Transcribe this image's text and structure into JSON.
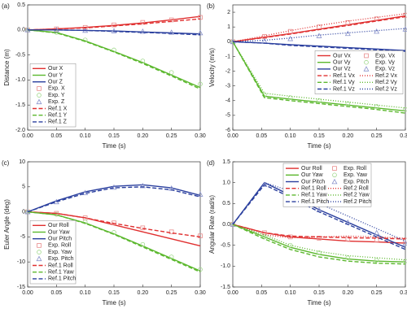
{
  "chart_data": [
    {
      "type": "line",
      "label": "(a)",
      "xlabel": "Time (s)",
      "ylabel": "Distance (m)",
      "xlim": [
        0,
        0.3
      ],
      "ylim": [
        -2,
        0.5
      ],
      "xticks": [
        {
          "value": 0,
          "label": "0.00"
        },
        0.05,
        {
          "value": 0.1,
          "label": "0.10"
        },
        0.15,
        {
          "value": 0.2,
          "label": "0.20"
        },
        0.25,
        {
          "value": 0.3,
          "label": "0.30"
        }
      ],
      "yticks": [
        0.5,
        {
          "value": 0,
          "label": "0.0"
        },
        -0.5,
        {
          "value": -1,
          "label": "-1.0"
        },
        -1.5,
        {
          "value": -2,
          "label": "-2.0"
        }
      ],
      "legend_position": "lower left",
      "legend_columns": 1,
      "x": [
        0,
        0.05,
        0.1,
        0.15,
        0.2,
        0.25,
        0.3
      ],
      "series": [
        {
          "name": "Our  X",
          "color": "#e03030",
          "dash": "solid",
          "values": [
            0,
            0.02,
            0.05,
            0.09,
            0.14,
            0.2,
            0.27
          ]
        },
        {
          "name": "Our  Y",
          "color": "#5cb82e",
          "dash": "solid",
          "values": [
            0,
            -0.05,
            -0.22,
            -0.43,
            -0.65,
            -0.9,
            -1.15
          ]
        },
        {
          "name": "Our  Z",
          "color": "#2a3f9e",
          "dash": "solid",
          "values": [
            0,
            0,
            -0.01,
            -0.02,
            -0.04,
            -0.06,
            -0.08
          ]
        },
        {
          "name": "Exp. X",
          "color": "#e88a8a",
          "marker": "square",
          "values": [
            0,
            0.02,
            0.05,
            0.1,
            0.15,
            0.2,
            0.25
          ]
        },
        {
          "name": "Exp. Y",
          "color": "#9fd88a",
          "marker": "circle",
          "values": [
            0,
            -0.05,
            -0.2,
            -0.4,
            -0.62,
            -0.85,
            -1.08
          ]
        },
        {
          "name": "Exp. Z",
          "color": "#8a93cc",
          "marker": "triangle",
          "values": [
            0,
            0,
            -0.01,
            -0.02,
            -0.03,
            -0.05,
            -0.06
          ]
        },
        {
          "name": "Ref.1 X",
          "color": "#e03030",
          "dash": "dash",
          "values": [
            0,
            0.02,
            0.04,
            0.08,
            0.12,
            0.17,
            0.22
          ]
        },
        {
          "name": "Ref.1 Y",
          "color": "#5cb82e",
          "dash": "dash",
          "values": [
            0,
            -0.06,
            -0.23,
            -0.44,
            -0.67,
            -0.92,
            -1.18
          ]
        },
        {
          "name": "Ref.1 Z",
          "color": "#2a3f9e",
          "dash": "dash",
          "values": [
            0,
            0,
            -0.01,
            -0.03,
            -0.05,
            -0.07,
            -0.1
          ]
        }
      ]
    },
    {
      "type": "line",
      "label": "(b)",
      "xlabel": "Time (s)",
      "ylabel": "Velocity (m/s)",
      "xlim": [
        0,
        0.3
      ],
      "ylim": [
        -6,
        2.5
      ],
      "xticks": [
        {
          "value": 0,
          "label": "0.00"
        },
        0.05,
        {
          "value": 0.1,
          "label": "0.10"
        },
        0.15,
        {
          "value": 0.2,
          "label": "0.20"
        },
        0.25,
        {
          "value": 0.3,
          "label": "0.30"
        }
      ],
      "yticks": [
        2,
        1,
        0,
        -1,
        -2,
        -3,
        -4,
        -5,
        -6
      ],
      "legend_position": "center right",
      "legend_columns": 2,
      "x": [
        0,
        0.055,
        0.1,
        0.15,
        0.2,
        0.25,
        0.3
      ],
      "series": [
        {
          "name": "Our Vx",
          "color": "#e03030",
          "dash": "solid",
          "values": [
            0,
            0.3,
            0.55,
            0.85,
            1.15,
            1.45,
            1.75
          ]
        },
        {
          "name": "Exp. Vx",
          "color": "#e88a8a",
          "marker": "square",
          "values": [
            0,
            0.35,
            0.7,
            1.0,
            1.3,
            1.55,
            1.8
          ]
        },
        {
          "name": "Our Vy",
          "color": "#5cb82e",
          "dash": "solid",
          "values": [
            0,
            -3.7,
            -3.9,
            -4.1,
            -4.3,
            -4.5,
            -4.7
          ]
        },
        {
          "name": "Exp. Vy",
          "color": "#9fd88a",
          "marker": "circle",
          "values": [
            0,
            -3.6,
            -3.8,
            -4.0,
            -4.2,
            -4.4,
            -4.6
          ]
        },
        {
          "name": "Our Vz",
          "color": "#2a3f9e",
          "dash": "solid",
          "values": [
            0,
            -0.1,
            -0.2,
            -0.3,
            -0.4,
            -0.5,
            -0.6
          ]
        },
        {
          "name": "Exp. Vz",
          "color": "#8a93cc",
          "marker": "triangle",
          "values": [
            0,
            0.05,
            0.2,
            0.4,
            0.55,
            0.7,
            0.85
          ]
        },
        {
          "name": "Ref.1 Vx",
          "color": "#e03030",
          "dash": "dash",
          "values": [
            0,
            0.28,
            0.52,
            0.82,
            1.1,
            1.4,
            1.7
          ]
        },
        {
          "name": "Ref.2 Vx",
          "color": "#e03030",
          "dash": "dot",
          "values": [
            0,
            0.4,
            0.75,
            1.1,
            1.4,
            1.65,
            1.9
          ]
        },
        {
          "name": "Ref.1 Vy",
          "color": "#5cb82e",
          "dash": "dash",
          "values": [
            0,
            -3.8,
            -4.0,
            -4.2,
            -4.4,
            -4.6,
            -4.85
          ]
        },
        {
          "name": "Ref.2 Vy",
          "color": "#5cb82e",
          "dash": "dot",
          "values": [
            0,
            -3.5,
            -3.7,
            -3.9,
            -4.1,
            -4.3,
            -4.5
          ]
        },
        {
          "name": "Ref.1 Vz",
          "color": "#2a3f9e",
          "dash": "dash",
          "values": [
            0,
            -0.1,
            -0.25,
            -0.35,
            -0.45,
            -0.55,
            -0.65
          ]
        },
        {
          "name": "Ref.2 Vz",
          "color": "#2a3f9e",
          "dash": "dot",
          "values": [
            0,
            0.1,
            0.25,
            0.45,
            0.6,
            0.75,
            0.9
          ]
        }
      ]
    },
    {
      "type": "line",
      "label": "(c)",
      "xlabel": "Time (s)",
      "ylabel": "Euler Angle (deg)",
      "xlim": [
        0,
        0.3
      ],
      "ylim": [
        -15,
        10
      ],
      "xticks": [
        {
          "value": 0,
          "label": "0.00"
        },
        0.05,
        {
          "value": 0.1,
          "label": "0.10"
        },
        0.15,
        {
          "value": 0.2,
          "label": "0.20"
        },
        0.25,
        {
          "value": 0.3,
          "label": "0.30"
        }
      ],
      "yticks": [
        10,
        5,
        0,
        -5,
        -10,
        -15
      ],
      "legend_position": "lower left",
      "legend_columns": 1,
      "x": [
        0,
        0.05,
        0.1,
        0.15,
        0.2,
        0.25,
        0.3
      ],
      "series": [
        {
          "name": "Our  Roll",
          "color": "#e03030",
          "dash": "solid",
          "values": [
            0,
            -0.3,
            -1.2,
            -2.6,
            -4.0,
            -5.4,
            -6.8
          ]
        },
        {
          "name": "Our  Yaw",
          "color": "#5cb82e",
          "dash": "solid",
          "values": [
            0,
            -0.6,
            -2.2,
            -4.4,
            -6.8,
            -9.3,
            -11.8
          ]
        },
        {
          "name": "Our  Pitch",
          "color": "#2a3f9e",
          "dash": "solid",
          "values": [
            0,
            2.2,
            4.0,
            5.1,
            5.4,
            4.8,
            3.3
          ]
        },
        {
          "name": "Exp. Roll",
          "color": "#e88a8a",
          "marker": "square",
          "values": [
            0,
            -0.3,
            -1.2,
            -2.2,
            -3.2,
            -4.0,
            -4.8
          ]
        },
        {
          "name": "Exp. Yaw",
          "color": "#9fd88a",
          "marker": "circle",
          "values": [
            0,
            -0.5,
            -2.0,
            -4.1,
            -6.5,
            -9.0,
            -11.5
          ]
        },
        {
          "name": "Exp. Pitch",
          "color": "#8a93cc",
          "marker": "triangle",
          "values": [
            0,
            2.0,
            3.8,
            4.9,
            5.2,
            4.7,
            3.5
          ]
        },
        {
          "name": "Ref.1 Roll",
          "color": "#e03030",
          "dash": "dash",
          "values": [
            0,
            -0.3,
            -1.2,
            -2.3,
            -3.3,
            -4.2,
            -5.0
          ]
        },
        {
          "name": "Ref.1 Yaw",
          "color": "#5cb82e",
          "dash": "dash",
          "values": [
            0,
            -0.6,
            -2.3,
            -4.5,
            -7.0,
            -9.5,
            -12.0
          ]
        },
        {
          "name": "Ref.1 Pitch",
          "color": "#2a3f9e",
          "dash": "dash",
          "values": [
            0,
            2.0,
            3.7,
            4.8,
            5.0,
            4.4,
            3.0
          ]
        }
      ]
    },
    {
      "type": "line",
      "label": "(d)",
      "xlabel": "Time (s)",
      "ylabel": "Angular Rate (rad/s)",
      "xlim": [
        0,
        0.3
      ],
      "ylim": [
        -1.5,
        1.5
      ],
      "xticks": [
        {
          "value": 0,
          "label": "0.00"
        },
        0.05,
        {
          "value": 0.1,
          "label": "0.10"
        },
        0.15,
        {
          "value": 0.2,
          "label": "0.20"
        },
        0.25,
        {
          "value": 0.3,
          "label": "0.30"
        }
      ],
      "yticks": [
        1.5,
        {
          "value": 1,
          "label": "1.0"
        },
        0.5,
        {
          "value": 0,
          "label": "0.0"
        },
        -0.5,
        {
          "value": -1,
          "label": "-1.0"
        },
        -1.5
      ],
      "legend_position": "upper center",
      "legend_columns": 2,
      "x": [
        0,
        0.055,
        0.1,
        0.15,
        0.2,
        0.25,
        0.3
      ],
      "series": [
        {
          "name": "Our  Roll",
          "color": "#e03030",
          "dash": "solid",
          "values": [
            0,
            -0.2,
            -0.3,
            -0.35,
            -0.4,
            -0.42,
            -0.45
          ]
        },
        {
          "name": "Exp. Roll",
          "color": "#e88a8a",
          "marker": "square",
          "values": [
            0,
            -0.2,
            -0.3,
            -0.33,
            -0.35,
            -0.37,
            -0.38
          ]
        },
        {
          "name": "Our  Yaw",
          "color": "#5cb82e",
          "dash": "solid",
          "values": [
            0,
            -0.3,
            -0.55,
            -0.72,
            -0.83,
            -0.88,
            -0.9
          ]
        },
        {
          "name": "Exp. Yaw",
          "color": "#9fd88a",
          "marker": "circle",
          "values": [
            0,
            -0.3,
            -0.5,
            -0.68,
            -0.8,
            -0.86,
            -0.88
          ]
        },
        {
          "name": "Our  Pitch",
          "color": "#2a3f9e",
          "dash": "solid",
          "values": [
            0,
            1.0,
            0.7,
            0.35,
            0.05,
            -0.25,
            -0.55
          ]
        },
        {
          "name": "Exp. Pitch",
          "color": "#8a93cc",
          "marker": "triangle",
          "values": [
            0,
            0.95,
            0.65,
            0.35,
            0.05,
            -0.2,
            -0.45
          ]
        },
        {
          "name": "Ref.1 Roll",
          "color": "#e03030",
          "dash": "dash",
          "values": [
            0,
            -0.2,
            -0.28,
            -0.3,
            -0.32,
            -0.33,
            -0.35
          ]
        },
        {
          "name": "Ref.2 Roll",
          "color": "#e03030",
          "dash": "dot",
          "values": [
            0,
            -0.25,
            -0.32,
            -0.3,
            -0.28,
            -0.3,
            -0.33
          ]
        },
        {
          "name": "Ref.1 Yaw",
          "color": "#5cb82e",
          "dash": "dash",
          "values": [
            0,
            -0.35,
            -0.6,
            -0.78,
            -0.88,
            -0.93,
            -0.95
          ]
        },
        {
          "name": "Ref.2 Yaw",
          "color": "#5cb82e",
          "dash": "dot",
          "values": [
            0,
            -0.25,
            -0.5,
            -0.65,
            -0.75,
            -0.8,
            -0.85
          ]
        },
        {
          "name": "Ref.1 Pitch",
          "color": "#2a3f9e",
          "dash": "dash",
          "values": [
            0,
            0.95,
            0.65,
            0.3,
            0.0,
            -0.3,
            -0.6
          ]
        },
        {
          "name": "Ref.2 Pitch",
          "color": "#2a3f9e",
          "dash": "dot",
          "values": [
            0,
            1.0,
            0.8,
            0.5,
            0.2,
            -0.1,
            -0.4
          ]
        }
      ]
    }
  ]
}
